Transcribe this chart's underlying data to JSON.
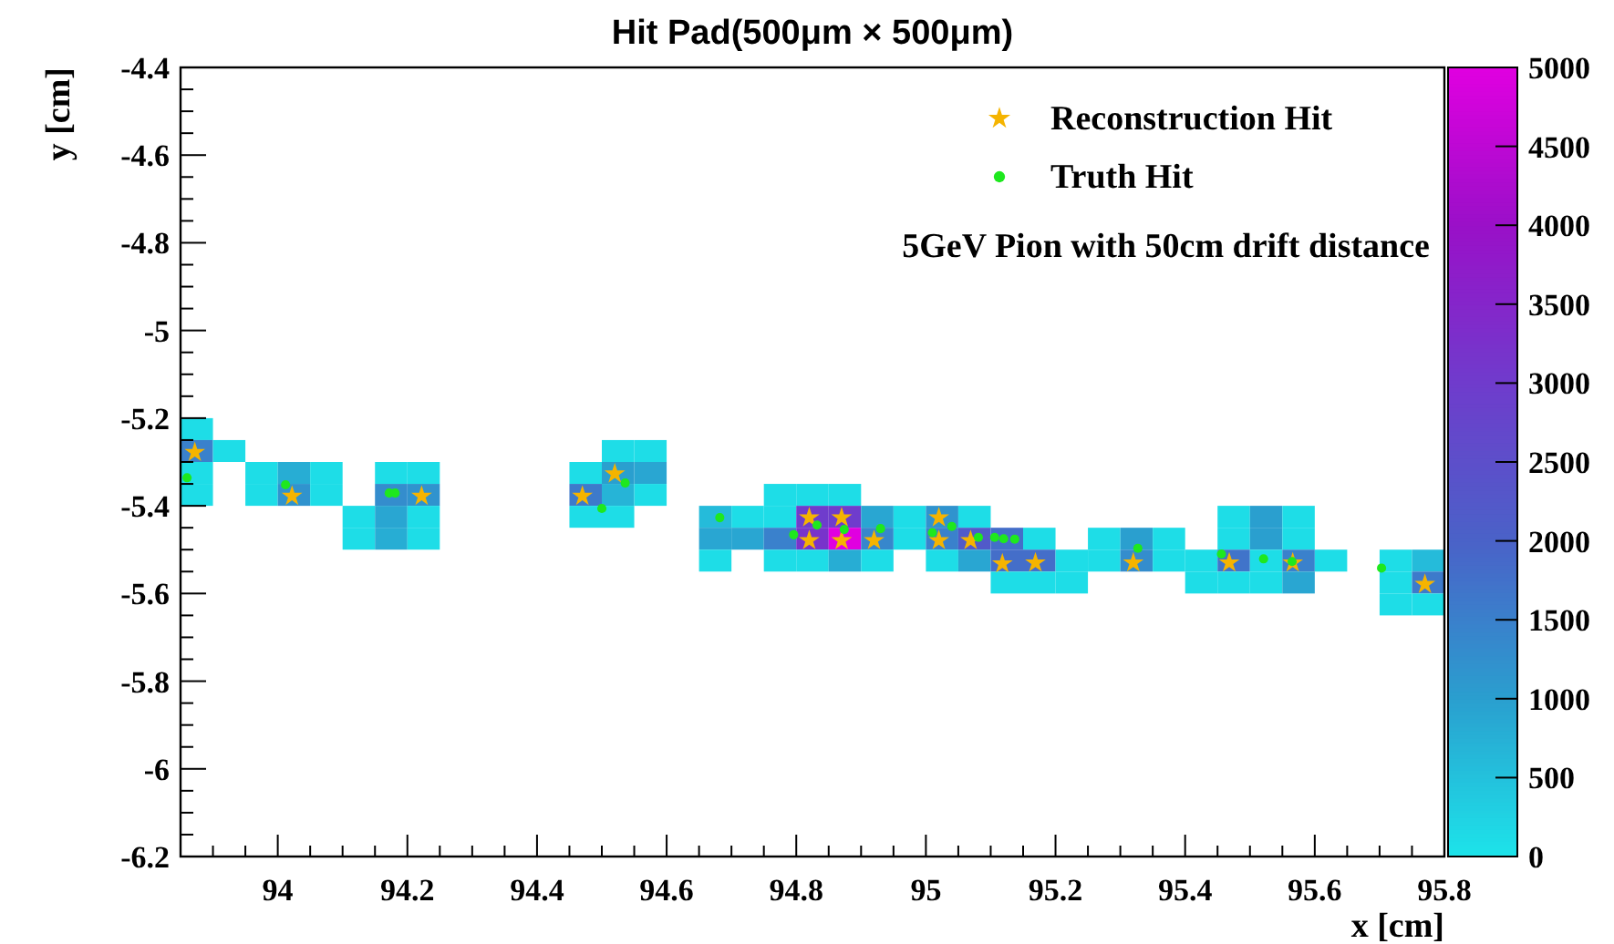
{
  "chart_data": {
    "type": "heatmap",
    "title": "Hit Pad(500μm × 500μm)",
    "xlabel": "x [cm]",
    "ylabel": "y [cm]",
    "x": [
      93.875,
      93.925,
      93.975,
      94.025,
      94.075,
      94.125,
      94.175,
      94.225,
      94.275,
      94.325,
      94.375,
      94.425,
      94.475,
      94.525,
      94.575,
      94.625,
      94.675,
      94.725,
      94.775,
      94.825,
      94.875,
      94.925,
      94.975,
      95.025,
      95.075,
      95.125,
      95.175,
      95.225,
      95.275,
      95.325,
      95.375,
      95.425,
      95.475,
      95.525,
      95.575,
      95.625,
      95.675,
      95.725,
      95.775
    ],
    "y": [
      -5.225,
      -5.275,
      -5.325,
      -5.375,
      -5.425,
      -5.475,
      -5.525,
      -5.575,
      -5.625
    ],
    "cells": [
      [
        100,
        null,
        null,
        null,
        null,
        null,
        null,
        null,
        null,
        null,
        null,
        null,
        null,
        null,
        null,
        null,
        null,
        null,
        null,
        null,
        null,
        null,
        null,
        null,
        null,
        null,
        null,
        null,
        null,
        null,
        null,
        null,
        null,
        null,
        null,
        null,
        null,
        null,
        null
      ],
      [
        1500,
        100,
        null,
        null,
        null,
        null,
        null,
        null,
        null,
        null,
        null,
        null,
        null,
        100,
        100,
        null,
        null,
        null,
        null,
        null,
        null,
        null,
        null,
        null,
        null,
        null,
        null,
        null,
        null,
        null,
        null,
        null,
        null,
        null,
        null,
        null,
        null,
        null,
        null
      ],
      [
        100,
        null,
        100,
        800,
        100,
        null,
        100,
        100,
        null,
        null,
        null,
        null,
        100,
        1000,
        900,
        null,
        null,
        null,
        null,
        null,
        null,
        null,
        null,
        null,
        null,
        null,
        null,
        null,
        null,
        null,
        null,
        null,
        null,
        null,
        null,
        null,
        null,
        null,
        null
      ],
      [
        100,
        null,
        100,
        1200,
        100,
        null,
        1300,
        1200,
        null,
        null,
        null,
        null,
        1600,
        700,
        100,
        null,
        null,
        null,
        100,
        100,
        100,
        null,
        null,
        null,
        null,
        null,
        null,
        null,
        null,
        null,
        null,
        null,
        null,
        null,
        null,
        null,
        null,
        null,
        null
      ],
      [
        null,
        null,
        null,
        null,
        null,
        100,
        900,
        100,
        null,
        null,
        null,
        null,
        100,
        100,
        null,
        null,
        600,
        100,
        100,
        3000,
        3000,
        900,
        100,
        1200,
        100,
        null,
        null,
        null,
        null,
        null,
        null,
        null,
        100,
        1000,
        100,
        null,
        null,
        null,
        null
      ],
      [
        null,
        null,
        null,
        null,
        null,
        100,
        800,
        100,
        null,
        null,
        null,
        null,
        null,
        null,
        null,
        null,
        900,
        900,
        1500,
        3200,
        5000,
        1400,
        100,
        1500,
        2200,
        1800,
        100,
        null,
        100,
        1000,
        100,
        null,
        100,
        1000,
        100,
        null,
        null,
        null,
        null
      ],
      [
        null,
        null,
        null,
        null,
        null,
        null,
        null,
        null,
        null,
        null,
        null,
        null,
        null,
        null,
        null,
        null,
        100,
        null,
        100,
        100,
        800,
        100,
        null,
        100,
        900,
        1800,
        1800,
        100,
        100,
        1300,
        100,
        100,
        1700,
        100,
        1500,
        100,
        null,
        100,
        600
      ],
      [
        null,
        null,
        null,
        null,
        null,
        null,
        null,
        null,
        null,
        null,
        null,
        null,
        null,
        null,
        null,
        null,
        null,
        null,
        null,
        null,
        null,
        null,
        null,
        null,
        null,
        100,
        100,
        100,
        null,
        null,
        null,
        100,
        100,
        100,
        900,
        null,
        null,
        100,
        1600
      ],
      [
        null,
        null,
        null,
        null,
        null,
        null,
        null,
        null,
        null,
        null,
        null,
        null,
        null,
        null,
        null,
        null,
        null,
        null,
        null,
        null,
        null,
        null,
        null,
        null,
        null,
        null,
        null,
        null,
        null,
        null,
        null,
        null,
        null,
        null,
        null,
        null,
        null,
        100,
        100
      ]
    ],
    "clim": [
      0,
      5000
    ],
    "cticks": [
      0,
      500,
      1000,
      1500,
      2000,
      2500,
      3000,
      3500,
      4000,
      4500,
      5000
    ],
    "xlim": [
      93.85,
      95.8
    ],
    "ylim": [
      -6.2,
      -4.4
    ],
    "xticks": [
      {
        "value": 93.9,
        "label": null
      },
      {
        "value": 93.95,
        "label": null
      },
      94,
      {
        "value": 94.05,
        "label": null
      },
      {
        "value": 94.1,
        "label": null
      },
      {
        "value": 94.15,
        "label": null
      },
      94.2,
      {
        "value": 94.25,
        "label": null
      },
      {
        "value": 94.3,
        "label": null
      },
      {
        "value": 94.35,
        "label": null
      },
      94.4,
      {
        "value": 94.45,
        "label": null
      },
      {
        "value": 94.5,
        "label": null
      },
      {
        "value": 94.55,
        "label": null
      },
      94.6,
      {
        "value": 94.65,
        "label": null
      },
      {
        "value": 94.7,
        "label": null
      },
      {
        "value": 94.75,
        "label": null
      },
      94.8,
      {
        "value": 94.85,
        "label": null
      },
      {
        "value": 94.9,
        "label": null
      },
      {
        "value": 94.95,
        "label": null
      },
      95,
      {
        "value": 95.05,
        "label": null
      },
      {
        "value": 95.1,
        "label": null
      },
      {
        "value": 95.15,
        "label": null
      },
      95.2,
      {
        "value": 95.25,
        "label": null
      },
      {
        "value": 95.3,
        "label": null
      },
      {
        "value": 95.35,
        "label": null
      },
      95.4,
      {
        "value": 95.45,
        "label": null
      },
      {
        "value": 95.5,
        "label": null
      },
      {
        "value": 95.55,
        "label": null
      },
      95.6,
      {
        "value": 95.65,
        "label": null
      },
      {
        "value": 95.7,
        "label": null
      },
      {
        "value": 95.75,
        "label": null
      },
      95.8
    ],
    "yticks": [
      -4.4,
      {
        "value": -4.45,
        "label": null
      },
      {
        "value": -4.5,
        "label": null
      },
      {
        "value": -4.55,
        "label": null
      },
      -4.6,
      {
        "value": -4.65,
        "label": null
      },
      {
        "value": -4.7,
        "label": null
      },
      {
        "value": -4.75,
        "label": null
      },
      -4.8,
      {
        "value": -4.85,
        "label": null
      },
      {
        "value": -4.9,
        "label": null
      },
      {
        "value": -4.95,
        "label": null
      },
      -5,
      {
        "value": -5.05,
        "label": null
      },
      {
        "value": -5.1,
        "label": null
      },
      {
        "value": -5.15,
        "label": null
      },
      -5.2,
      {
        "value": -5.25,
        "label": null
      },
      {
        "value": -5.3,
        "label": null
      },
      {
        "value": -5.35,
        "label": null
      },
      -5.4,
      {
        "value": -5.45,
        "label": null
      },
      {
        "value": -5.5,
        "label": null
      },
      {
        "value": -5.55,
        "label": null
      },
      -5.6,
      {
        "value": -5.65,
        "label": null
      },
      {
        "value": -5.7,
        "label": null
      },
      {
        "value": -5.75,
        "label": null
      },
      -5.8,
      {
        "value": -5.85,
        "label": null
      },
      {
        "value": -5.9,
        "label": null
      },
      {
        "value": -5.95,
        "label": null
      },
      -6,
      {
        "value": -6.05,
        "label": null
      },
      {
        "value": -6.1,
        "label": null
      },
      {
        "value": -6.15,
        "label": null
      },
      -6.2
    ],
    "legend": "top right",
    "annotations": [
      "5GeV Pion with 50cm drift distance"
    ],
    "series": [
      {
        "name": "Reconstruction Hit",
        "type": "scatter",
        "marker": "star",
        "color": "#f5b400",
        "x": [
          93.872,
          94.022,
          94.222,
          94.47,
          94.52,
          94.82,
          94.87,
          94.82,
          94.87,
          94.92,
          95.02,
          95.02,
          95.069,
          95.118,
          95.169,
          95.32,
          95.468,
          95.566,
          95.77
        ],
        "values": [
          -5.278,
          -5.378,
          -5.378,
          -5.378,
          -5.327,
          -5.427,
          -5.427,
          -5.479,
          -5.479,
          -5.479,
          -5.427,
          -5.479,
          -5.479,
          -5.532,
          -5.53,
          -5.53,
          -5.53,
          -5.53,
          -5.579
        ]
      },
      {
        "name": "Truth Hit",
        "type": "scatter",
        "marker": "circle",
        "color": "#1ee81e",
        "x": [
          93.86,
          94.012,
          94.172,
          94.181,
          94.536,
          94.5,
          94.682,
          94.832,
          94.874,
          94.796,
          94.93,
          95.04,
          95.01,
          95.081,
          95.106,
          95.12,
          95.137,
          95.327,
          95.456,
          95.521,
          95.565,
          95.703
        ],
        "values": [
          -5.336,
          -5.352,
          -5.371,
          -5.371,
          -5.348,
          -5.406,
          -5.427,
          -5.444,
          -5.454,
          -5.466,
          -5.452,
          -5.447,
          -5.461,
          -5.472,
          -5.472,
          -5.475,
          -5.476,
          -5.497,
          -5.51,
          -5.521,
          -5.527,
          -5.542
        ]
      }
    ]
  }
}
